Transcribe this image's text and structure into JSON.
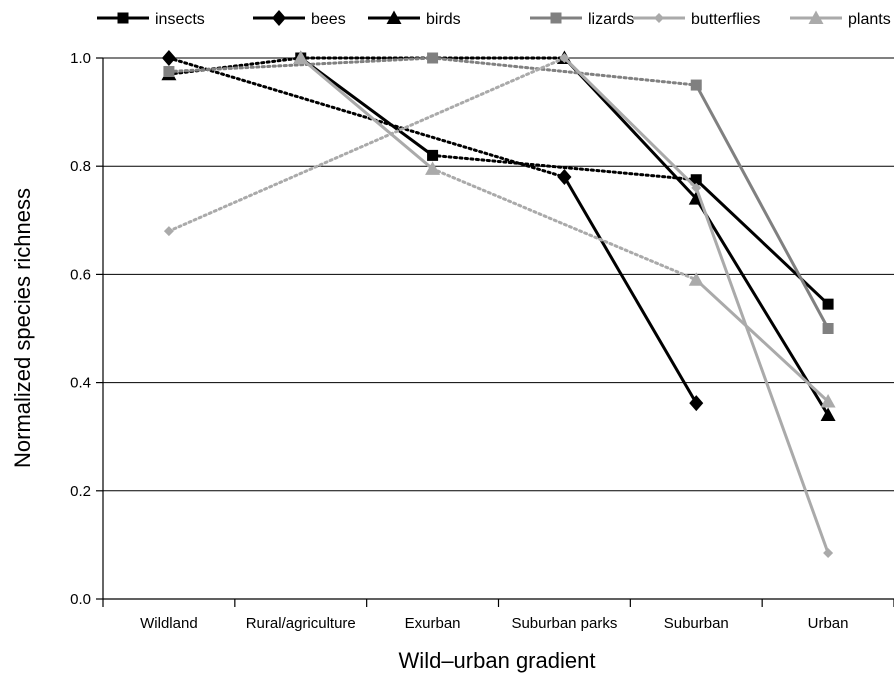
{
  "chart_data": {
    "type": "line",
    "title": "",
    "xlabel": "Wild–urban gradient",
    "ylabel": "Normalized species richness",
    "categories": [
      "Wildland",
      "Rural/agriculture",
      "Exurban",
      "Suburban parks",
      "Suburban",
      "Urban"
    ],
    "ylim": [
      0,
      1.0
    ],
    "yticks": [
      "0.0",
      "0.2",
      "0.4",
      "0.6",
      "0.8",
      "1.0"
    ],
    "grid": "horizontal",
    "legend": "top",
    "series": [
      {
        "name": "insects",
        "color": "#000000",
        "marker": "square",
        "solid_points": [
          [
            1,
            1.0
          ],
          [
            2,
            0.82
          ],
          [
            4,
            0.775
          ],
          [
            5,
            0.545
          ]
        ],
        "dotted_segments": [
          [
            [
              2,
              0.82
            ],
            [
              4,
              0.775
            ]
          ]
        ]
      },
      {
        "name": "bees",
        "color": "#000000",
        "marker": "diamond",
        "solid_points": [
          [
            0,
            1.0
          ],
          [
            3,
            0.78
          ],
          [
            4,
            0.362
          ]
        ],
        "dotted_segments": [
          [
            [
              0,
              1.0
            ],
            [
              3,
              0.78
            ]
          ]
        ]
      },
      {
        "name": "birds",
        "color": "#000000",
        "marker": "triangle",
        "solid_points": [
          [
            0,
            0.97
          ],
          [
            1,
            1.0
          ],
          [
            3,
            1.0
          ],
          [
            4,
            0.74
          ],
          [
            5,
            0.34
          ]
        ],
        "dotted_segments": [
          [
            [
              0,
              0.97
            ],
            [
              1,
              1.0
            ]
          ],
          [
            [
              1,
              1.0
            ],
            [
              3,
              1.0
            ]
          ]
        ]
      },
      {
        "name": "lizards",
        "color": "#808080",
        "marker": "square",
        "solid_points": [
          [
            0,
            0.975
          ],
          [
            2,
            1.0
          ],
          [
            4,
            0.95
          ],
          [
            5,
            0.5
          ]
        ],
        "dotted_segments": [
          [
            [
              0,
              0.975
            ],
            [
              2,
              1.0
            ]
          ],
          [
            [
              2,
              1.0
            ],
            [
              4,
              0.95
            ]
          ]
        ]
      },
      {
        "name": "butterflies",
        "color": "#aaaaaa",
        "marker": "diamond-small",
        "solid_points": [
          [
            0,
            0.68
          ],
          [
            3,
            1.0
          ],
          [
            4,
            0.76
          ],
          [
            5,
            0.085
          ]
        ],
        "dotted_segments": [
          [
            [
              0,
              0.68
            ],
            [
              3,
              1.0
            ]
          ]
        ]
      },
      {
        "name": "plants",
        "color": "#aaaaaa",
        "marker": "triangle",
        "solid_points": [
          [
            1,
            1.0
          ],
          [
            2,
            0.795
          ],
          [
            4,
            0.59
          ],
          [
            5,
            0.365
          ]
        ],
        "dotted_segments": [
          [
            [
              2,
              0.795
            ],
            [
              4,
              0.59
            ]
          ]
        ]
      }
    ]
  }
}
